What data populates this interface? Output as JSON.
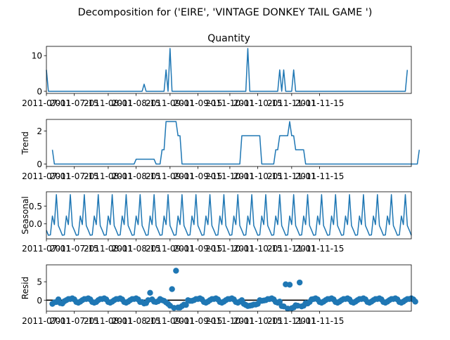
{
  "suptitle": "Decomposition for ('EIRE', 'VINTAGE DONKEY TAIL GAME ')",
  "colors": {
    "series": "#1f77b4",
    "axis": "#000000",
    "zero_line": "#000000"
  },
  "chart_data": [
    {
      "name": "observed",
      "type": "line",
      "title": "Quantity",
      "ylabel": "",
      "ylim": [
        -0.6,
        12.6
      ],
      "y_ticks": [
        0,
        10
      ],
      "y_tick_labels": [
        "0",
        "10"
      ],
      "x_tick_labels": [
        "2011-07-01",
        "2011-07-15",
        "2011-08-01",
        "2011-08-15",
        "2011-09-01",
        "2011-09-15",
        "2011-10-01",
        "2011-10-15",
        "2011-11-01",
        "2011-11-15"
      ],
      "values": [
        6,
        0,
        0,
        0,
        0,
        0,
        0,
        0,
        0,
        0,
        0,
        0,
        0,
        0,
        0,
        0,
        0,
        0,
        0,
        0,
        0,
        0,
        0,
        0,
        0,
        0,
        0,
        0,
        0,
        0,
        0,
        0,
        0,
        0,
        0,
        0,
        0,
        0,
        0,
        0,
        0,
        0,
        0,
        0,
        0,
        0,
        0,
        0,
        0,
        2,
        0,
        0,
        0,
        0,
        0,
        0,
        0,
        0,
        0,
        0,
        6,
        0,
        12,
        0,
        0,
        0,
        0,
        0,
        0,
        0,
        0,
        0,
        0,
        0,
        0,
        0,
        0,
        0,
        0,
        0,
        0,
        0,
        0,
        0,
        0,
        0,
        0,
        0,
        0,
        0,
        0,
        0,
        0,
        0,
        0,
        0,
        0,
        0,
        0,
        0,
        0,
        12,
        0,
        0,
        0,
        0,
        0,
        0,
        0,
        0,
        0,
        0,
        0,
        0,
        0,
        0,
        0,
        6,
        0,
        6,
        0,
        0,
        0,
        0,
        6,
        0,
        0,
        0,
        0,
        0,
        0,
        0,
        0,
        0,
        0,
        0,
        0,
        0,
        0,
        0,
        0,
        0,
        0,
        0,
        0,
        0,
        0,
        0,
        0,
        0,
        0,
        0,
        0,
        0,
        0,
        0,
        0,
        0,
        0,
        0,
        0,
        0,
        0,
        0,
        0,
        0,
        0,
        0,
        0,
        0,
        0,
        0,
        0,
        0,
        0,
        0,
        0,
        0,
        0,
        0,
        0,
        6
      ]
    },
    {
      "name": "trend",
      "type": "line",
      "title": "",
      "ylabel": "Trend",
      "ylim": [
        -0.15,
        2.7
      ],
      "y_ticks": [
        0,
        2
      ],
      "y_tick_labels": [
        "0",
        "2"
      ],
      "x_tick_labels": [
        "2011-07-01",
        "2011-07-15",
        "2011-08-01",
        "2011-08-15",
        "2011-09-01",
        "2011-09-15",
        "2011-10-01",
        "2011-10-15",
        "2011-11-01",
        "2011-11-15"
      ],
      "values": [
        null,
        null,
        null,
        0.86,
        0,
        0,
        0,
        0,
        0,
        0,
        0,
        0,
        0,
        0,
        0,
        0,
        0,
        0,
        0,
        0,
        0,
        0,
        0,
        0,
        0,
        0,
        0,
        0,
        0,
        0,
        0,
        0,
        0,
        0,
        0,
        0,
        0,
        0,
        0,
        0,
        0,
        0,
        0,
        0,
        0,
        0.29,
        0.29,
        0.29,
        0.29,
        0.29,
        0.29,
        0.29,
        0.29,
        0.29,
        0.29,
        0,
        0,
        0,
        0.86,
        0.86,
        2.57,
        2.57,
        2.57,
        2.57,
        2.57,
        2.57,
        1.71,
        1.71,
        0,
        0,
        0,
        0,
        0,
        0,
        0,
        0,
        0,
        0,
        0,
        0,
        0,
        0,
        0,
        0,
        0,
        0,
        0,
        0,
        0,
        0,
        0,
        0,
        0,
        0,
        0,
        0,
        0,
        0,
        1.71,
        1.71,
        1.71,
        1.71,
        1.71,
        1.71,
        1.71,
        1.71,
        1.71,
        1.71,
        0,
        0,
        0,
        0,
        0,
        0,
        0,
        0.86,
        0.86,
        1.71,
        1.71,
        1.71,
        1.71,
        1.71,
        2.57,
        1.71,
        1.71,
        0.86,
        0.86,
        0.86,
        0.86,
        0.86,
        0,
        0,
        0,
        0,
        0,
        0,
        0,
        0,
        0,
        0,
        0,
        0,
        0,
        0,
        0,
        0,
        0,
        0,
        0,
        0,
        0,
        0,
        0,
        0,
        0,
        0,
        0,
        0,
        0,
        0,
        0,
        0,
        0,
        0,
        0,
        0,
        0,
        0,
        0,
        0,
        0,
        0,
        0,
        0,
        0,
        0,
        0,
        0,
        0,
        0,
        0,
        0,
        0,
        0,
        0,
        0,
        0,
        0.86,
        null,
        null,
        null
      ]
    },
    {
      "name": "seasonal",
      "type": "line",
      "title": "",
      "ylabel": "Seasonal",
      "ylim": [
        -0.42,
        0.9
      ],
      "y_ticks": [
        0.0,
        0.5
      ],
      "y_tick_labels": [
        "0.0",
        "0.5"
      ],
      "x_tick_labels": [
        "2011-07-01",
        "2011-07-15",
        "2011-08-01",
        "2011-08-15",
        "2011-09-01",
        "2011-09-15",
        "2011-10-01",
        "2011-10-15",
        "2011-11-01",
        "2011-11-15"
      ],
      "pattern": [
        -0.18,
        -0.32,
        -0.31,
        0.22,
        -0.02,
        0.82,
        -0.05
      ],
      "length": 184
    },
    {
      "name": "resid",
      "type": "scatter",
      "title": "",
      "ylabel": "Resid",
      "ylim": [
        -3.0,
        9.6
      ],
      "y_ticks": [
        0,
        5
      ],
      "y_tick_labels": [
        "0",
        "5"
      ],
      "x_tick_labels": [
        "2011-07-01",
        "2011-07-15",
        "2011-08-01",
        "2011-08-15",
        "2011-09-01",
        "2011-09-15",
        "2011-10-01",
        "2011-10-15",
        "2011-11-01",
        "2011-11-15"
      ],
      "zero_line": true,
      "start_index": 3,
      "values": [
        -1.0,
        -0.6,
        -0.5,
        0.2,
        -0.8,
        -0.9,
        -0.3,
        0.0,
        0.3,
        0.3,
        0.5,
        0.2,
        -0.5,
        -0.7,
        -0.4,
        0.0,
        0.3,
        0.3,
        0.5,
        0.2,
        -0.5,
        -0.7,
        -0.5,
        0.0,
        0.3,
        0.3,
        0.5,
        0.2,
        -0.5,
        -0.7,
        -0.4,
        0.0,
        0.3,
        0.3,
        0.5,
        0.2,
        -0.5,
        -0.7,
        -0.4,
        0.0,
        0.3,
        0.3,
        0.5,
        0.2,
        -0.5,
        -0.5,
        -0.9,
        -0.8,
        0.0,
        2.0,
        0.2,
        -0.4,
        -0.5,
        -0.3,
        0.3,
        0.0,
        -0.2,
        -0.6,
        -1.0,
        -1.5,
        3.0,
        -2.1,
        8.0,
        -2.0,
        -2.0,
        -1.6,
        -1.2,
        -1.3,
        0.0,
        -0.2,
        -0.2,
        0.0,
        0.3,
        0.3,
        0.5,
        0.2,
        -0.5,
        -0.7,
        -0.4,
        0.0,
        0.3,
        0.3,
        0.5,
        0.2,
        -0.5,
        -0.7,
        -0.4,
        0.0,
        0.3,
        0.3,
        0.5,
        0.2,
        -0.5,
        -0.7,
        -0.4,
        0.0,
        -1.0,
        -1.3,
        -1.6,
        -1.5,
        -1.4,
        -1.2,
        -1.2,
        -1.0,
        0.0,
        -0.2,
        -0.1,
        0.0,
        0.3,
        0.3,
        0.5,
        0.2,
        -0.5,
        -0.7,
        -0.4,
        -1.6,
        -1.7,
        4.3,
        -2.3,
        4.2,
        -2.2,
        -2.0,
        -1.4,
        -1.5,
        4.8,
        -1.7,
        -1.5,
        -0.8,
        -0.9,
        -0.5,
        0.2,
        0.3,
        0.5,
        0.2,
        -0.5,
        -0.7,
        -0.4,
        0.0,
        0.3,
        0.3,
        0.5,
        0.2,
        -0.5,
        -0.7,
        -0.4,
        0.0,
        0.3,
        0.3,
        0.5,
        0.2,
        -0.5,
        -0.7,
        -0.4,
        0.0,
        0.3,
        0.3,
        0.5,
        0.2,
        -0.5,
        -0.7,
        -0.4,
        0.0,
        0.3,
        0.3,
        0.5,
        0.2,
        -0.5,
        -0.7,
        -0.4,
        0.0,
        0.3,
        0.3,
        0.5,
        0.2,
        -0.5,
        -0.7,
        -0.4,
        0.0,
        0.3,
        0.3,
        0.5,
        0.2,
        -0.4
      ]
    }
  ]
}
